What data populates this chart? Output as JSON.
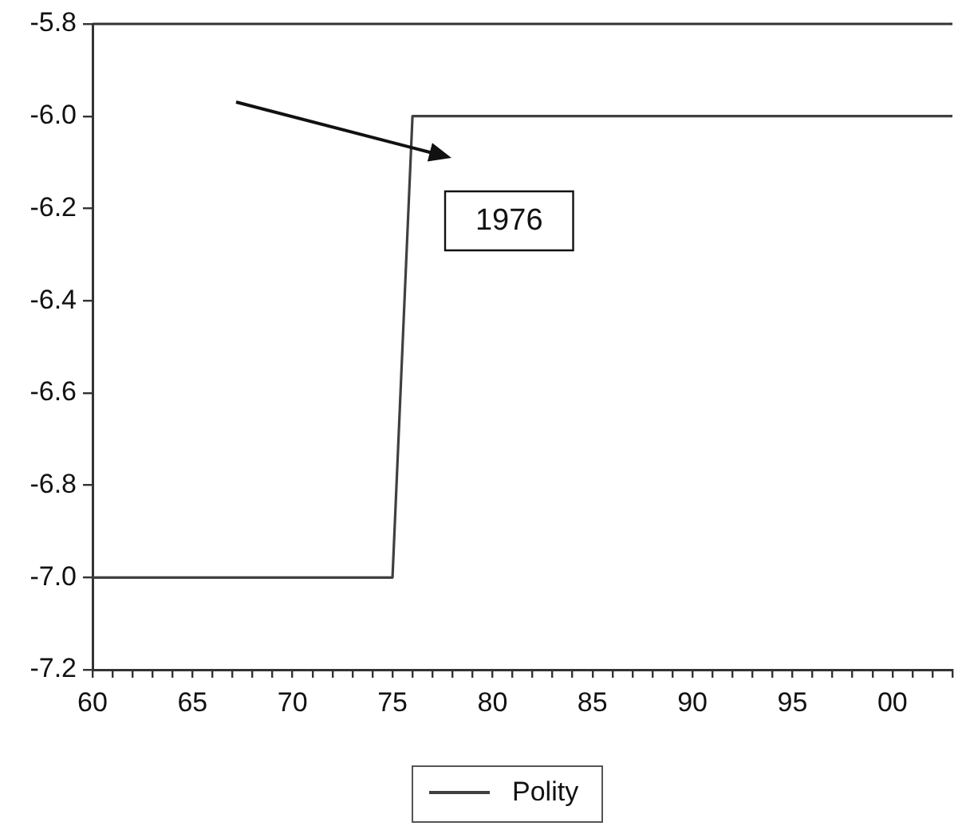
{
  "chart_data": {
    "type": "line",
    "legend": "bottom",
    "grid": false,
    "marker": "none",
    "line_style": "solid",
    "x": [
      1960,
      1975,
      1976,
      2003
    ],
    "series": [
      {
        "name": "Polity",
        "color": "#404040",
        "values": [
          -7,
          -7,
          -6,
          -6
        ]
      }
    ],
    "xlim": [
      1960,
      2003
    ],
    "xticks": [
      {
        "value": 1960,
        "label": "60"
      },
      {
        "value": 1961,
        "label": null
      },
      {
        "value": 1962,
        "label": null
      },
      {
        "value": 1963,
        "label": null
      },
      {
        "value": 1964,
        "label": null
      },
      {
        "value": 1965,
        "label": "65"
      },
      {
        "value": 1966,
        "label": null
      },
      {
        "value": 1967,
        "label": null
      },
      {
        "value": 1968,
        "label": null
      },
      {
        "value": 1969,
        "label": null
      },
      {
        "value": 1970,
        "label": "70"
      },
      {
        "value": 1971,
        "label": null
      },
      {
        "value": 1972,
        "label": null
      },
      {
        "value": 1973,
        "label": null
      },
      {
        "value": 1974,
        "label": null
      },
      {
        "value": 1975,
        "label": "75"
      },
      {
        "value": 1976,
        "label": null
      },
      {
        "value": 1977,
        "label": null
      },
      {
        "value": 1978,
        "label": null
      },
      {
        "value": 1979,
        "label": null
      },
      {
        "value": 1980,
        "label": "80"
      },
      {
        "value": 1981,
        "label": null
      },
      {
        "value": 1982,
        "label": null
      },
      {
        "value": 1983,
        "label": null
      },
      {
        "value": 1984,
        "label": null
      },
      {
        "value": 1985,
        "label": "85"
      },
      {
        "value": 1986,
        "label": null
      },
      {
        "value": 1987,
        "label": null
      },
      {
        "value": 1988,
        "label": null
      },
      {
        "value": 1989,
        "label": null
      },
      {
        "value": 1990,
        "label": "90"
      },
      {
        "value": 1991,
        "label": null
      },
      {
        "value": 1992,
        "label": null
      },
      {
        "value": 1993,
        "label": null
      },
      {
        "value": 1994,
        "label": null
      },
      {
        "value": 1995,
        "label": "95"
      },
      {
        "value": 1996,
        "label": null
      },
      {
        "value": 1997,
        "label": null
      },
      {
        "value": 1998,
        "label": null
      },
      {
        "value": 1999,
        "label": null
      },
      {
        "value": 2000,
        "label": "00"
      },
      {
        "value": 2001,
        "label": null
      },
      {
        "value": 2002,
        "label": null
      },
      {
        "value": 2003,
        "label": null
      }
    ],
    "ylim": [
      -7.2,
      -5.8
    ],
    "yticks": [
      {
        "value": -7.2,
        "label": "-7.2"
      },
      {
        "value": -7,
        "label": "-7.0"
      },
      {
        "value": -6.8,
        "label": "-6.8"
      },
      {
        "value": -6.6,
        "label": "-6.6"
      },
      {
        "value": -6.4,
        "label": "-6.4"
      },
      {
        "value": -6.2,
        "label": "-6.2"
      },
      {
        "value": -6,
        "label": "-6.0"
      },
      {
        "value": -5.8,
        "label": "-5.8"
      }
    ],
    "annotations": [
      "1976"
    ]
  }
}
